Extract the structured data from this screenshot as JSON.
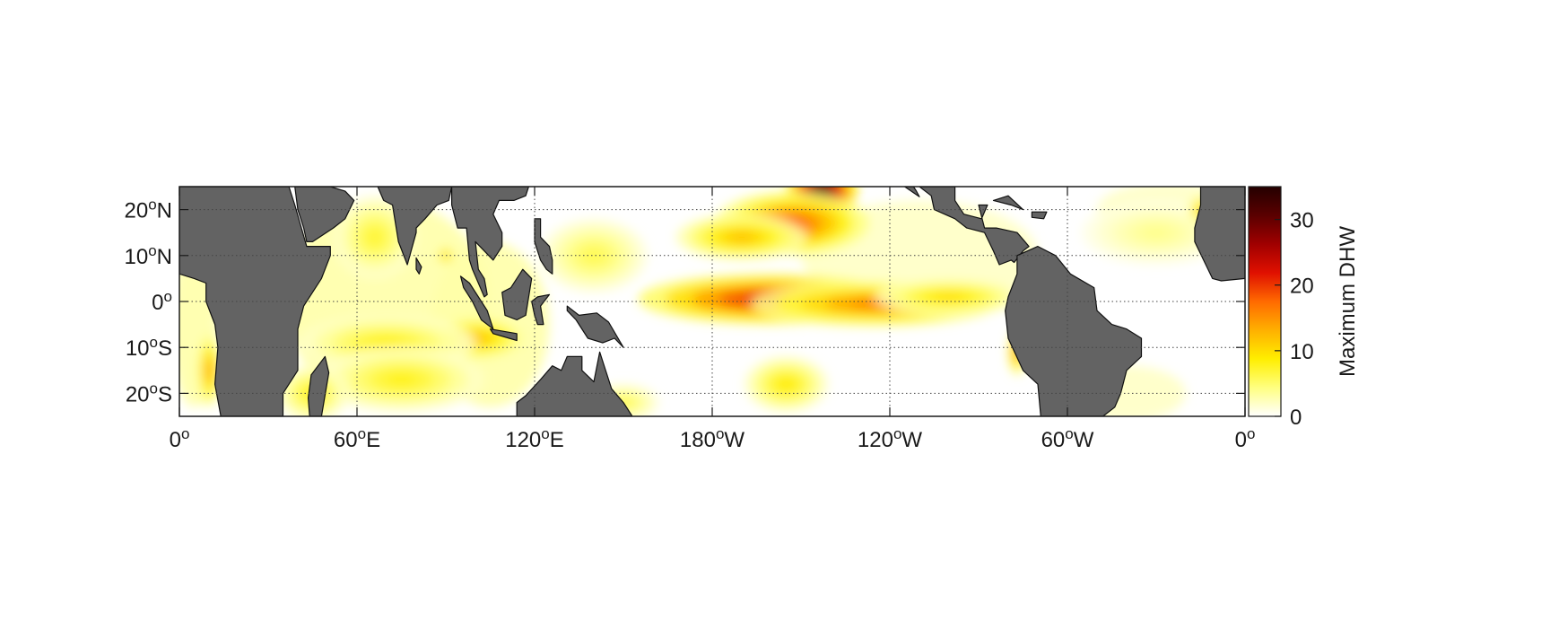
{
  "chart_data": {
    "type": "heatmap",
    "title": "",
    "colorbar": {
      "label": "Maximum DHW",
      "min": 0,
      "max": 35,
      "ticks": [
        0,
        10,
        20,
        30
      ],
      "tick_labels": [
        "0",
        "10",
        "20",
        "30"
      ],
      "colormap": [
        "#ffffff",
        "#ffff80",
        "#ffee00",
        "#ffb000",
        "#ff6a00",
        "#e01000",
        "#a00000",
        "#5a0000",
        "#240000"
      ]
    },
    "x_axis": {
      "ticks": [
        {
          "value": 0,
          "deg": "0",
          "hemi": ""
        },
        {
          "value": 60,
          "deg": "60",
          "hemi": "E"
        },
        {
          "value": 120,
          "deg": "120",
          "hemi": "E"
        },
        {
          "value": 180,
          "deg": "180",
          "hemi": "W"
        },
        {
          "value": 240,
          "deg": "120",
          "hemi": "W"
        },
        {
          "value": 300,
          "deg": "60",
          "hemi": "W"
        },
        {
          "value": 360,
          "deg": "0",
          "hemi": ""
        }
      ],
      "range": [
        0,
        360
      ],
      "degree_symbol": "o"
    },
    "y_axis": {
      "ticks": [
        {
          "value": 20,
          "deg": "20",
          "hemi": "N"
        },
        {
          "value": 10,
          "deg": "10",
          "hemi": "N"
        },
        {
          "value": 0,
          "deg": "0",
          "hemi": ""
        },
        {
          "value": -10,
          "deg": "10",
          "hemi": "S"
        },
        {
          "value": -20,
          "deg": "20",
          "hemi": "S"
        }
      ],
      "range": [
        -25,
        25
      ],
      "degree_symbol": "o"
    },
    "grid": true,
    "land_color": "#636363",
    "hotspots": [
      {
        "lon": 197,
        "lat": 0,
        "value": 34,
        "sx": 26,
        "sy": 3.5
      },
      {
        "lon": 200,
        "lat": 0.5,
        "value": 22,
        "sx": 45,
        "sy": 5.5
      },
      {
        "lon": 235,
        "lat": -0.5,
        "value": 16,
        "sx": 42,
        "sy": 5
      },
      {
        "lon": 260,
        "lat": 1,
        "value": 10,
        "sx": 25,
        "sy": 4
      },
      {
        "lon": 217,
        "lat": 24,
        "value": 33,
        "sx": 12,
        "sy": 6
      },
      {
        "lon": 207,
        "lat": 17,
        "value": 18,
        "sx": 26,
        "sy": 7
      },
      {
        "lon": 190,
        "lat": 14,
        "value": 12,
        "sx": 22,
        "sy": 5
      },
      {
        "lon": 100,
        "lat": -8,
        "value": 12,
        "sx": 18,
        "sy": 5
      },
      {
        "lon": 70,
        "lat": -9,
        "value": 8,
        "sx": 30,
        "sy": 6
      },
      {
        "lon": 75,
        "lat": -17,
        "value": 8,
        "sx": 28,
        "sy": 7
      },
      {
        "lon": 66,
        "lat": 14,
        "value": 7,
        "sx": 14,
        "sy": 9
      },
      {
        "lon": 10,
        "lat": -15,
        "value": 14,
        "sx": 4,
        "sy": 8
      },
      {
        "lon": 283,
        "lat": -11,
        "value": 16,
        "sx": 3,
        "sy": 5
      },
      {
        "lon": 205,
        "lat": -18,
        "value": 9,
        "sx": 14,
        "sy": 6
      },
      {
        "lon": 140,
        "lat": 10,
        "value": 6,
        "sx": 18,
        "sy": 8
      },
      {
        "lon": 330,
        "lat": 15,
        "value": 4,
        "sx": 25,
        "sy": 7
      },
      {
        "lon": 345,
        "lat": 20,
        "value": 12,
        "sx": 4,
        "sy": 3
      },
      {
        "lon": 90,
        "lat": 10,
        "value": 12,
        "sx": 3,
        "sy": 2
      },
      {
        "lon": 150,
        "lat": -22,
        "value": 6,
        "sx": 12,
        "sy": 4
      },
      {
        "lon": 45,
        "lat": -20,
        "value": 8,
        "sx": 12,
        "sy": 6
      }
    ],
    "land_polygons": [
      {
        "name": "africa",
        "coords": [
          [
            18,
            25
          ],
          [
            37,
            25
          ],
          [
            39,
            21
          ],
          [
            43,
            12
          ],
          [
            51,
            12
          ],
          [
            51,
            10
          ],
          [
            48,
            5
          ],
          [
            42,
            -1
          ],
          [
            40,
            -6
          ],
          [
            40,
            -10
          ],
          [
            40,
            -15
          ],
          [
            35,
            -20
          ],
          [
            35,
            -25
          ],
          [
            14,
            -25
          ],
          [
            12,
            -18
          ],
          [
            13,
            -10
          ],
          [
            12,
            -5
          ],
          [
            9,
            0
          ],
          [
            9,
            4
          ],
          [
            5,
            5
          ],
          [
            0,
            6
          ],
          [
            0,
            25
          ]
        ]
      },
      {
        "name": "arabia",
        "coords": [
          [
            39,
            25
          ],
          [
            50,
            25
          ],
          [
            51,
            25
          ],
          [
            56,
            24
          ],
          [
            59,
            22
          ],
          [
            56,
            18
          ],
          [
            52,
            16
          ],
          [
            45,
            13
          ],
          [
            43,
            13
          ],
          [
            42,
            16
          ],
          [
            40,
            20
          ]
        ]
      },
      {
        "name": "india",
        "coords": [
          [
            67,
            25
          ],
          [
            69,
            22
          ],
          [
            72,
            21
          ],
          [
            73,
            17
          ],
          [
            74,
            13
          ],
          [
            77,
            8
          ],
          [
            80,
            15
          ],
          [
            80,
            16
          ],
          [
            83,
            18
          ],
          [
            87,
            21
          ],
          [
            91,
            22
          ],
          [
            92,
            25
          ]
        ]
      },
      {
        "name": "srilanka",
        "coords": [
          [
            80,
            9.5
          ],
          [
            81.8,
            7.5
          ],
          [
            81,
            6
          ],
          [
            80,
            7
          ]
        ]
      },
      {
        "name": "indochina",
        "coords": [
          [
            92,
            25
          ],
          [
            92,
            21
          ],
          [
            94,
            16
          ],
          [
            97,
            16
          ],
          [
            98,
            9
          ],
          [
            99,
            7
          ],
          [
            103,
            1
          ],
          [
            104,
            1.5
          ],
          [
            103,
            5
          ],
          [
            101,
            7
          ],
          [
            100,
            13
          ],
          [
            103,
            11
          ],
          [
            106,
            9
          ],
          [
            109,
            12
          ],
          [
            109,
            15
          ],
          [
            106,
            19
          ],
          [
            108,
            22
          ],
          [
            113,
            22
          ],
          [
            117,
            23
          ],
          [
            118,
            25
          ]
        ]
      },
      {
        "name": "sumatra",
        "coords": [
          [
            95,
            5.5
          ],
          [
            98,
            4
          ],
          [
            104,
            -2
          ],
          [
            106,
            -6
          ],
          [
            102,
            -4
          ],
          [
            99,
            0
          ],
          [
            96,
            3
          ]
        ]
      },
      {
        "name": "java",
        "coords": [
          [
            105,
            -6
          ],
          [
            114,
            -7
          ],
          [
            114,
            -8.5
          ],
          [
            106,
            -7
          ]
        ]
      },
      {
        "name": "borneo",
        "coords": [
          [
            109,
            2
          ],
          [
            112,
            3
          ],
          [
            116,
            7
          ],
          [
            119,
            5
          ],
          [
            118,
            1
          ],
          [
            117,
            -3
          ],
          [
            114,
            -4
          ],
          [
            110,
            -3
          ]
        ]
      },
      {
        "name": "sulawesi",
        "coords": [
          [
            119,
            0
          ],
          [
            121,
            1
          ],
          [
            125,
            1.5
          ],
          [
            122,
            -1
          ],
          [
            123,
            -5
          ],
          [
            121,
            -5
          ],
          [
            120,
            -3
          ]
        ]
      },
      {
        "name": "philippines",
        "coords": [
          [
            120,
            18
          ],
          [
            122,
            18
          ],
          [
            122,
            14
          ],
          [
            125,
            12
          ],
          [
            126,
            9
          ],
          [
            126,
            6
          ],
          [
            124,
            7
          ],
          [
            122,
            9
          ],
          [
            120,
            13
          ]
        ]
      },
      {
        "name": "newguinea",
        "coords": [
          [
            131,
            -1
          ],
          [
            135,
            -3
          ],
          [
            141,
            -2.5
          ],
          [
            145,
            -4.5
          ],
          [
            150,
            -10
          ],
          [
            147,
            -8
          ],
          [
            143,
            -9
          ],
          [
            138,
            -8
          ],
          [
            134,
            -4
          ],
          [
            131,
            -2
          ]
        ]
      },
      {
        "name": "australia",
        "coords": [
          [
            114,
            -25
          ],
          [
            114,
            -22
          ],
          [
            117,
            -20.5
          ],
          [
            122,
            -17
          ],
          [
            126,
            -14
          ],
          [
            129,
            -15
          ],
          [
            131,
            -12
          ],
          [
            136,
            -12
          ],
          [
            136,
            -15
          ],
          [
            140,
            -17.5
          ],
          [
            142,
            -11
          ],
          [
            144,
            -15
          ],
          [
            146,
            -19
          ],
          [
            150,
            -22
          ],
          [
            153,
            -25
          ]
        ]
      },
      {
        "name": "madagascar",
        "coords": [
          [
            49.2,
            -12
          ],
          [
            50.5,
            -15.5
          ],
          [
            48,
            -25
          ],
          [
            44,
            -25
          ],
          [
            43.5,
            -21
          ],
          [
            44.5,
            -16
          ]
        ]
      },
      {
        "name": "northamerica",
        "coords": [
          [
            250,
            25
          ],
          [
            254,
            23
          ],
          [
            255,
            20
          ],
          [
            262,
            18
          ],
          [
            266,
            16
          ],
          [
            272,
            15
          ],
          [
            275,
            11
          ],
          [
            277,
            8
          ],
          [
            281,
            9
          ],
          [
            282,
            8.5
          ],
          [
            285,
            11
          ],
          [
            287,
            12
          ],
          [
            283,
            15
          ],
          [
            276,
            16
          ],
          [
            272,
            16
          ],
          [
            270,
            21
          ],
          [
            273,
            21
          ],
          [
            271,
            18
          ],
          [
            265,
            19
          ],
          [
            262,
            22
          ],
          [
            262,
            25
          ]
        ]
      },
      {
        "name": "southamerica",
        "coords": [
          [
            283,
            10
          ],
          [
            290,
            12
          ],
          [
            296,
            10
          ],
          [
            301,
            6
          ],
          [
            309,
            3
          ],
          [
            310,
            -2
          ],
          [
            315,
            -5
          ],
          [
            320,
            -6
          ],
          [
            325,
            -8
          ],
          [
            325,
            -12
          ],
          [
            320,
            -15
          ],
          [
            318,
            -20
          ],
          [
            316,
            -23
          ],
          [
            312,
            -25
          ],
          [
            291,
            -25
          ],
          [
            290,
            -18
          ],
          [
            285,
            -15
          ],
          [
            280,
            -8
          ],
          [
            279,
            -2
          ],
          [
            280,
            1
          ],
          [
            283,
            6
          ]
        ]
      },
      {
        "name": "cuba",
        "coords": [
          [
            275,
            22
          ],
          [
            280,
            23
          ],
          [
            285,
            20
          ],
          [
            281,
            21
          ]
        ]
      },
      {
        "name": "hispaniola",
        "coords": [
          [
            288,
            19.5
          ],
          [
            293,
            19.5
          ],
          [
            292,
            18
          ],
          [
            288,
            18.3
          ]
        ]
      },
      {
        "name": "westafrica_bulge",
        "coords": [
          [
            345,
            25
          ],
          [
            345,
            21
          ],
          [
            343,
            16
          ],
          [
            343,
            13
          ],
          [
            346,
            9
          ],
          [
            349,
            5
          ],
          [
            352,
            4.5
          ],
          [
            360,
            5
          ],
          [
            360,
            25
          ]
        ]
      },
      {
        "name": "baja",
        "coords": [
          [
            245,
            25
          ],
          [
            250,
            22.8
          ],
          [
            249,
            24
          ],
          [
            248,
            25
          ]
        ]
      }
    ]
  }
}
